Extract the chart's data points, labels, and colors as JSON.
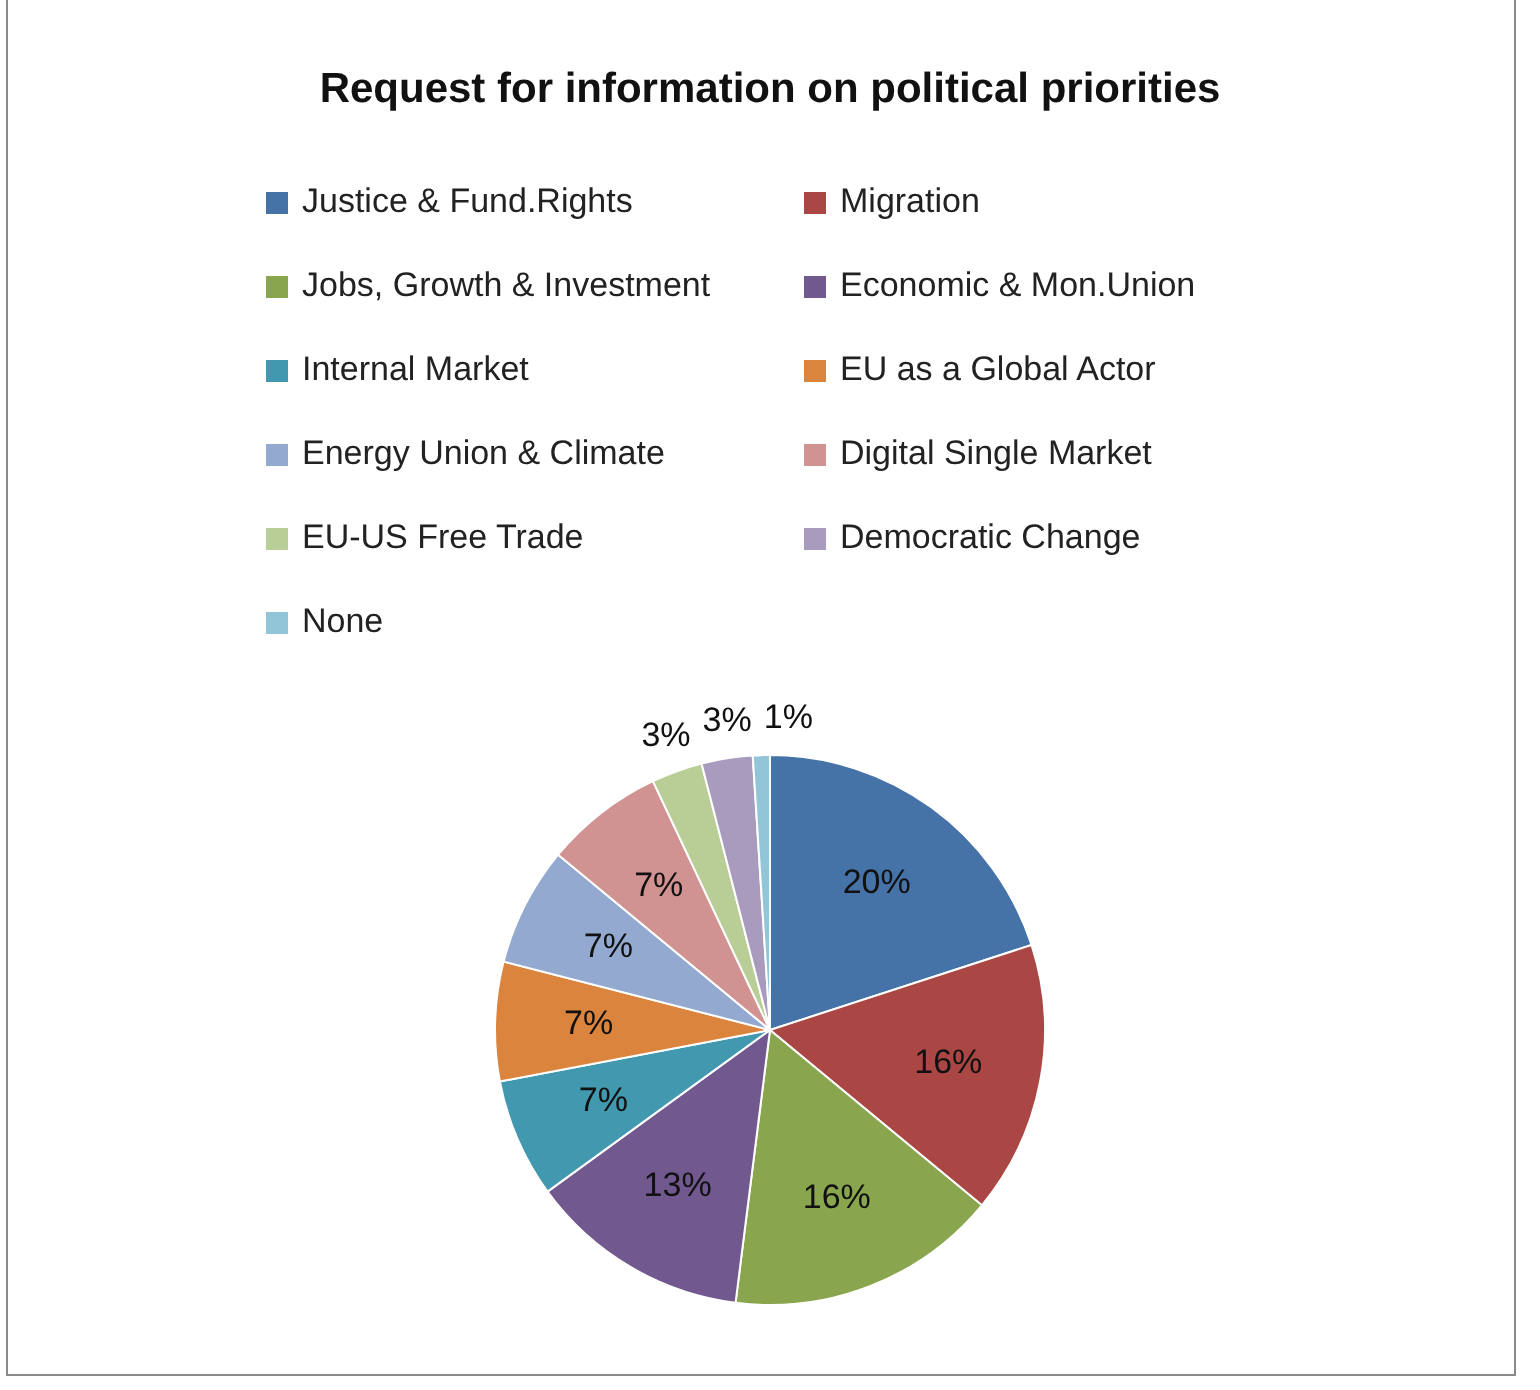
{
  "chart_data": {
    "type": "pie",
    "title": "Request for information on political priorities",
    "categories": [
      "Justice & Fund.Rights",
      "Migration",
      "Jobs, Growth & Investment",
      "Economic & Mon.Union",
      "Internal Market",
      "EU as a Global Actor",
      "Energy Union & Climate",
      "Digital Single Market",
      "EU-US Free Trade",
      "Democratic Change",
      "None"
    ],
    "values": [
      20,
      16,
      16,
      13,
      7,
      7,
      7,
      7,
      3,
      3,
      1
    ],
    "colors": [
      "#4572a7",
      "#aa4643",
      "#89a54e",
      "#71588f",
      "#4198af",
      "#db843d",
      "#93a9cf",
      "#d19392",
      "#b9cd96",
      "#a99bbd",
      "#92c5d8"
    ],
    "value_labels": [
      "20%",
      "16%",
      "16%",
      "13%",
      "7%",
      "7%",
      "7%",
      "7%",
      "3%",
      "3%",
      "1%"
    ],
    "legend": "top"
  }
}
